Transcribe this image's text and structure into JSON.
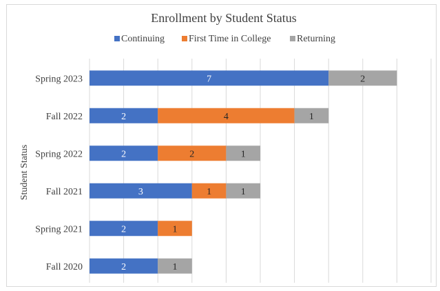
{
  "chart_data": {
    "type": "bar",
    "orientation": "horizontal",
    "stacked": true,
    "title": "Enrollment by Student Status",
    "ylabel": "Student Status",
    "xlabel": "",
    "categories": [
      "Spring 2023",
      "Fall 2022",
      "Spring 2022",
      "Fall 2021",
      "Spring 2021",
      "Fall 2020"
    ],
    "series": [
      {
        "name": "Continuing",
        "color": "#4472c4",
        "values": [
          7,
          2,
          2,
          3,
          2,
          2
        ]
      },
      {
        "name": "First Time in College",
        "color": "#ed7d31",
        "values": [
          0,
          4,
          2,
          1,
          1,
          0
        ]
      },
      {
        "name": "Returning",
        "color": "#a5a5a5",
        "values": [
          2,
          1,
          1,
          1,
          0,
          1
        ]
      }
    ],
    "xlim": [
      0,
      10
    ],
    "grid": true,
    "legend_position": "top"
  }
}
